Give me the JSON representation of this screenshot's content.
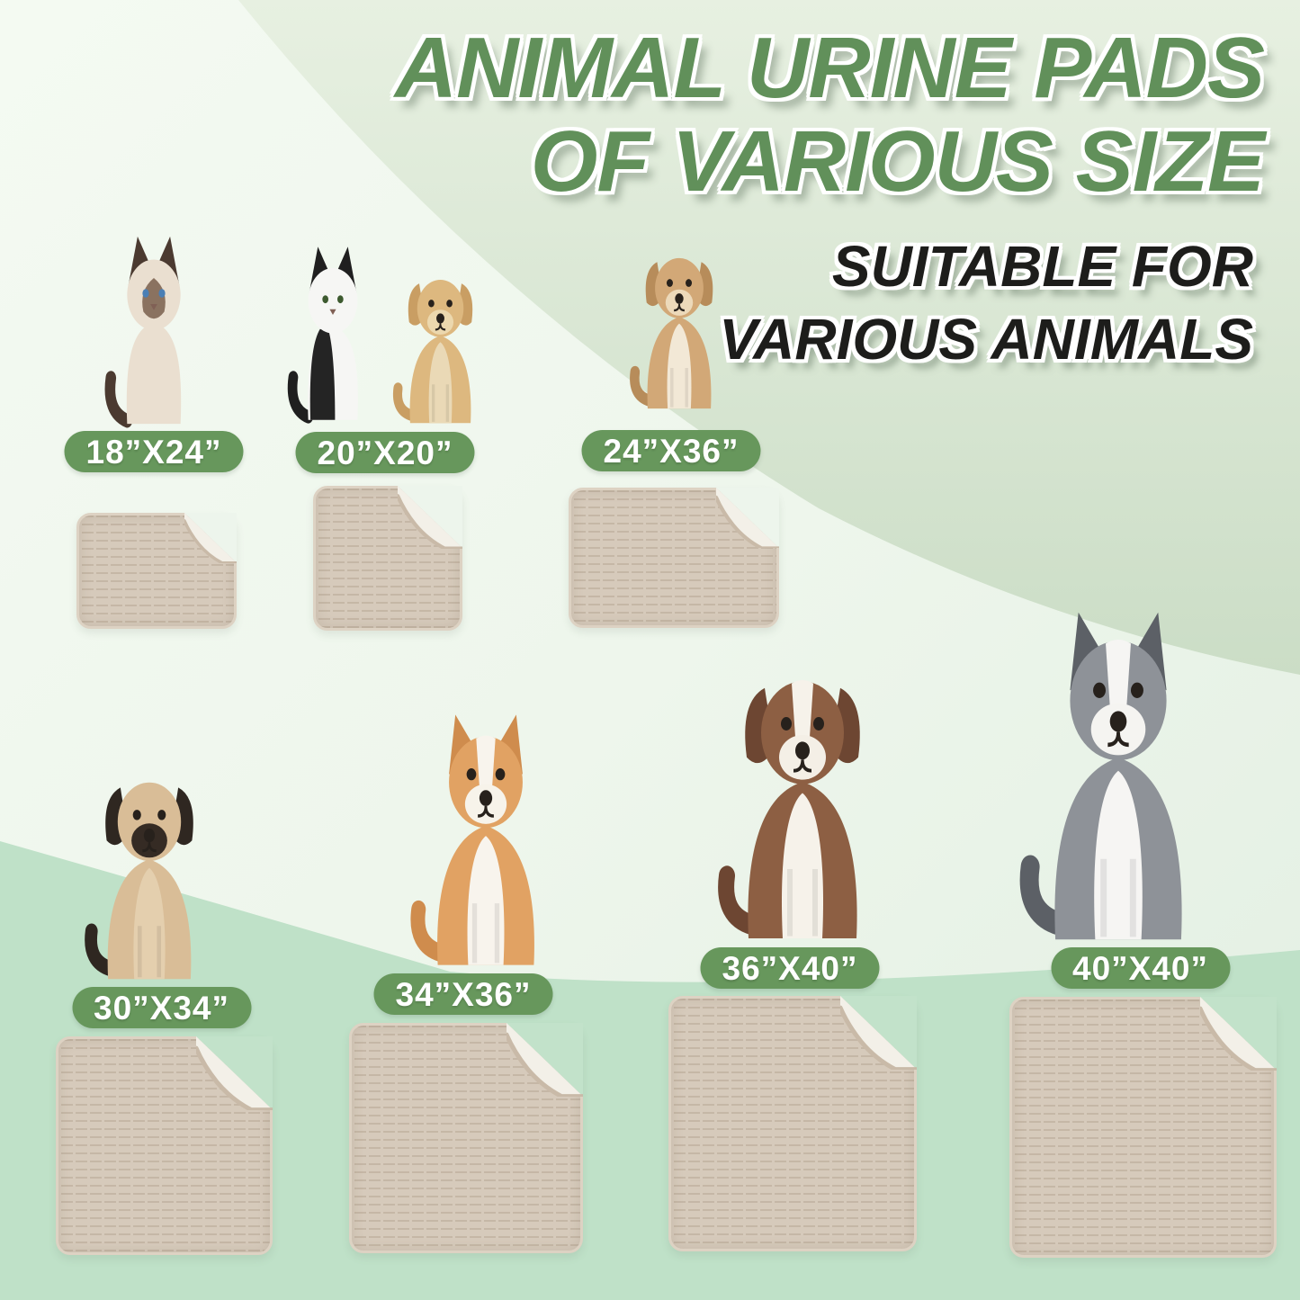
{
  "title": {
    "line1": "ANIMAL URINE PADS",
    "line2": "OF VARIOUS SIZE"
  },
  "subtitle": {
    "line1": "SUITABLE FOR",
    "line2": "VARIOUS ANIMALS"
  },
  "colors": {
    "title_green": "#61905a",
    "subtitle_black": "#1d1d1b",
    "badge_green": "#67975c",
    "badge_text": "#ffffff",
    "pad_surface": "#d6cabb",
    "pad_rib": "#c5b7a6",
    "pad_edge": "#ddd2c3",
    "pad_underside": "#f3f0e8",
    "pad_fold_lip": "#c9baa8",
    "bg_light": "#eef6ec",
    "bg_sage": "#cbddc6",
    "bg_mint": "#bfe1c8",
    "bg_notch_top": "#edf5ec",
    "bg_notch_bottom": "#c2e2ca"
  },
  "groups": [
    {
      "id": "cat-18x24",
      "size_label": "18”X24”",
      "animals": [
        {
          "kind": "cat",
          "name": "siamese-cat",
          "body": "#eadfd0",
          "ear": "#4b3a30",
          "mask": "#8a7260",
          "eye": "#4a7fb5"
        }
      ]
    },
    {
      "id": "cat-and-puppy-20x20",
      "size_label": "20”X20”",
      "animals": [
        {
          "kind": "cat",
          "name": "black-white-cat",
          "body": "#f6f6f4",
          "ear": "#1f1f1f",
          "patch": "#242424",
          "eye": "#3d5a2f"
        },
        {
          "kind": "dog",
          "name": "labrador-puppy",
          "body": "#ddb87f",
          "ear": "#c99e63",
          "muzzle": "#ecd8ae",
          "chest": "#ead9b6",
          "ears": "floppy"
        }
      ]
    },
    {
      "id": "tan-dog-24x36",
      "size_label": "24”X36”",
      "animals": [
        {
          "kind": "dog",
          "name": "tan-dog",
          "body": "#d2a877",
          "ear": "#b78c5a",
          "muzzle": "#ecd9ba",
          "chest": "#f2e8d6",
          "ears": "floppy"
        }
      ]
    },
    {
      "id": "pug-30x34",
      "size_label": "30”X34”",
      "animals": [
        {
          "kind": "dog",
          "name": "pug",
          "body": "#d9bd97",
          "ear": "#2f2721",
          "muzzle": "#352b24",
          "chest": "#e4cfae",
          "ears": "floppy"
        }
      ]
    },
    {
      "id": "corgi-34x36",
      "size_label": "34”X36”",
      "animals": [
        {
          "kind": "dog",
          "name": "corgi",
          "body": "#e1a263",
          "ear": "#cf8c4d",
          "muzzle": "#f7f3ea",
          "chest": "#f8f4ed",
          "blaze": "#f8f4ed",
          "ears": "pointy"
        }
      ]
    },
    {
      "id": "australian-shepherd-36x40",
      "size_label": "36”X40”",
      "animals": [
        {
          "kind": "dog",
          "name": "australian-shepherd",
          "body": "#8d5f43",
          "ear": "#6d4632",
          "muzzle": "#f4efe6",
          "chest": "#f6f2ea",
          "blaze": "#f6f2ea",
          "ears": "floppy"
        }
      ]
    },
    {
      "id": "husky-40x40",
      "size_label": "40”X40”",
      "animals": [
        {
          "kind": "dog",
          "name": "siberian-husky",
          "body": "#8e9298",
          "ear": "#5c6066",
          "muzzle": "#f5f4f1",
          "chest": "#f6f5f3",
          "blaze": "#f6f5f3",
          "ears": "pointy"
        }
      ]
    }
  ]
}
